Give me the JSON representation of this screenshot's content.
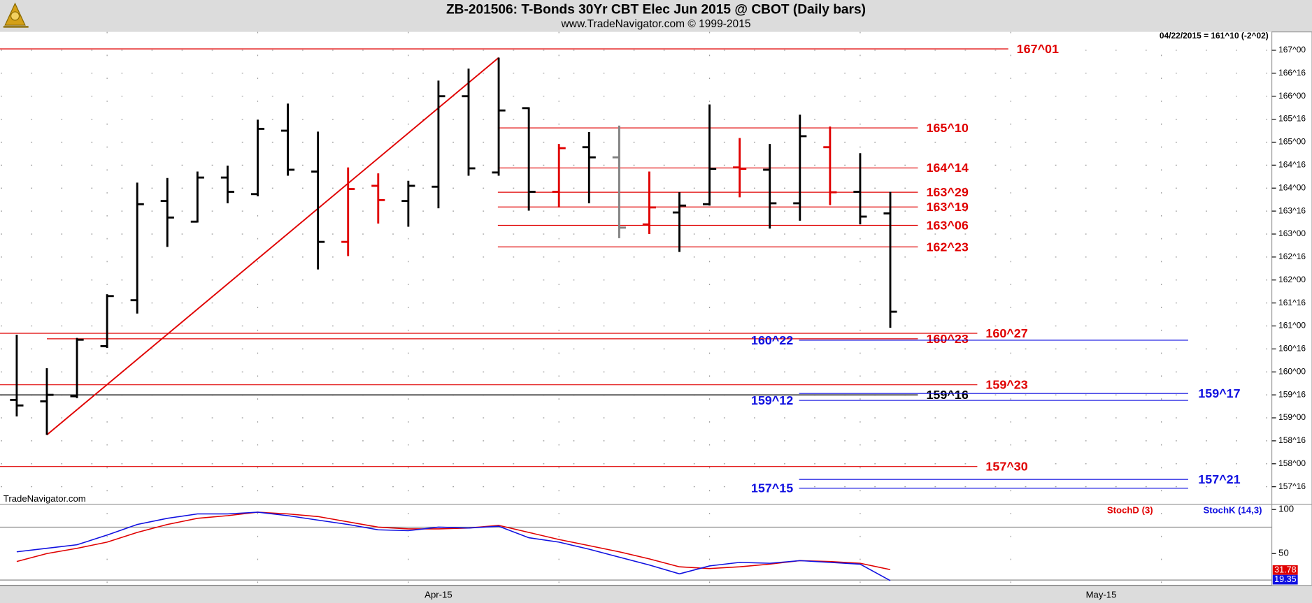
{
  "chart_data": [
    {
      "type": "ohlc",
      "title": "ZB-201506:  T-Bonds 30Yr CBT Elec Jun 2015 @ CBOT  (Daily bars)",
      "subtitle": "www.TradeNavigator.com © 1999-2015",
      "price_note": "04/22/2015 = 161^10 (-2^02)",
      "watermark": "TradeNavigator.com",
      "categories": [
        null,
        null,
        null,
        null,
        null,
        null,
        null,
        null,
        null,
        null,
        null,
        null,
        null,
        null,
        "Apr-15",
        null,
        null,
        null,
        null,
        null,
        null,
        null,
        null,
        null,
        null,
        null,
        null,
        null,
        null,
        null,
        null,
        null,
        null,
        null,
        null,
        null,
        "May-15",
        null,
        null,
        null,
        null,
        null
      ],
      "open": [
        159.39,
        159.36,
        159.47,
        160.56,
        161.56,
        163.72,
        163.27,
        164.23,
        163.87,
        165.25,
        164.36,
        162.83,
        164.05,
        163.72,
        164.03,
        166.0,
        164.34,
        165.74,
        163.92,
        164.89,
        164.67,
        163.21,
        163.47,
        163.65,
        164.45,
        164.4,
        163.67,
        164.89,
        163.92,
        163.45,
        null,
        null,
        null,
        null,
        null,
        null,
        null,
        null,
        null,
        null,
        null,
        null
      ],
      "high": [
        160.81,
        160.08,
        160.74,
        161.69,
        164.12,
        164.22,
        164.36,
        164.49,
        165.49,
        165.84,
        165.23,
        164.45,
        164.32,
        164.16,
        166.34,
        166.6,
        166.84,
        165.76,
        164.96,
        165.22,
        165.36,
        164.36,
        163.91,
        165.82,
        165.09,
        164.96,
        165.6,
        165.34,
        164.76,
        163.92,
        null,
        null,
        null,
        null,
        null,
        null,
        null,
        null,
        null,
        null,
        null,
        null
      ],
      "low": [
        159.03,
        158.63,
        159.43,
        160.52,
        161.27,
        162.72,
        163.25,
        163.67,
        163.82,
        164.27,
        162.23,
        162.52,
        163.23,
        163.16,
        163.56,
        164.27,
        164.27,
        163.51,
        163.58,
        163.67,
        162.91,
        163.0,
        162.61,
        163.62,
        163.8,
        163.12,
        163.29,
        163.63,
        163.21,
        160.96,
        null,
        null,
        null,
        null,
        null,
        null,
        null,
        null,
        null,
        null,
        null,
        null
      ],
      "close": [
        159.27,
        159.5,
        160.7,
        161.65,
        163.65,
        163.36,
        164.23,
        163.92,
        165.29,
        164.4,
        162.83,
        163.98,
        163.74,
        164.05,
        166.0,
        164.43,
        165.69,
        163.92,
        164.87,
        164.67,
        163.14,
        163.58,
        163.62,
        164.42,
        164.42,
        163.67,
        165.13,
        163.91,
        163.38,
        161.31,
        null,
        null,
        null,
        null,
        null,
        null,
        null,
        null,
        null,
        null,
        null,
        null
      ],
      "bar_colors": [
        "#000000",
        "#000000",
        "#000000",
        "#000000",
        "#000000",
        "#000000",
        "#000000",
        "#000000",
        "#000000",
        "#000000",
        "#000000",
        "#e00000",
        "#e00000",
        "#000000",
        "#000000",
        "#000000",
        "#000000",
        "#000000",
        "#e00000",
        "#000000",
        "#808080",
        "#e00000",
        "#000000",
        "#000000",
        "#e00000",
        "#000000",
        "#000000",
        "#e00000",
        "#000000",
        "#000000",
        null,
        null,
        null,
        null,
        null,
        null,
        null,
        null,
        null,
        null,
        null,
        null
      ],
      "trendline_color": "#e00000",
      "ylim": [
        157.12,
        167.4
      ],
      "yticks": [
        {
          "value": 157.5,
          "label": "157^16"
        },
        {
          "value": 158,
          "label": "158^00"
        },
        {
          "value": 158.5,
          "label": "158^16"
        },
        {
          "value": 159,
          "label": "159^00"
        },
        {
          "value": 159.5,
          "label": "159^16"
        },
        {
          "value": 160,
          "label": "160^00"
        },
        {
          "value": 160.5,
          "label": "160^16"
        },
        {
          "value": 161,
          "label": "161^00"
        },
        {
          "value": 161.5,
          "label": "161^16"
        },
        {
          "value": 162,
          "label": "162^00"
        },
        {
          "value": 162.5,
          "label": "162^16"
        },
        {
          "value": 163,
          "label": "163^00"
        },
        {
          "value": 163.5,
          "label": "163^16"
        },
        {
          "value": 164,
          "label": "164^00"
        },
        {
          "value": 164.5,
          "label": "164^16"
        },
        {
          "value": 165,
          "label": "165^00"
        },
        {
          "value": 165.5,
          "label": "165^16"
        },
        {
          "value": 166,
          "label": "166^00"
        },
        {
          "value": 166.5,
          "label": "166^16"
        },
        {
          "value": 167,
          "label": "167^00"
        }
      ],
      "grid": true,
      "levels": [
        {
          "value": 167.03,
          "label": "167^01",
          "color": "#e00000"
        },
        {
          "value": 165.31,
          "label": "165^10",
          "color": "#e00000"
        },
        {
          "value": 164.44,
          "label": "164^14",
          "color": "#e00000"
        },
        {
          "value": 163.91,
          "label": "163^29",
          "color": "#e00000"
        },
        {
          "value": 163.59,
          "label": "163^19",
          "color": "#e00000"
        },
        {
          "value": 163.19,
          "label": "163^06",
          "color": "#e00000"
        },
        {
          "value": 162.72,
          "label": "162^23",
          "color": "#e00000"
        },
        {
          "value": 160.84,
          "label": "160^27",
          "color": "#e00000"
        },
        {
          "value": 160.72,
          "label": "160^23",
          "color": "#e00000"
        },
        {
          "value": 160.69,
          "label": "160^22",
          "color": "#1010e0"
        },
        {
          "value": 159.72,
          "label": "159^23",
          "color": "#e00000"
        },
        {
          "value": 159.5,
          "label": "159^16",
          "color": "#000000"
        },
        {
          "value": 159.53,
          "label": "159^17",
          "color": "#1010e0"
        },
        {
          "value": 159.38,
          "label": "159^12",
          "color": "#1010e0"
        },
        {
          "value": 157.94,
          "label": "157^30",
          "color": "#e00000"
        },
        {
          "value": 157.66,
          "label": "157^21",
          "color": "#1010e0"
        },
        {
          "value": 157.47,
          "label": "157^15",
          "color": "#1010e0"
        }
      ]
    },
    {
      "type": "line",
      "series": [
        {
          "name": "StochD (3)",
          "color": "#e00000",
          "values": [
            41,
            50,
            56,
            63,
            74,
            83,
            90,
            93,
            97,
            95,
            92,
            86,
            80,
            78,
            78,
            79,
            82,
            74,
            66,
            59,
            52,
            44,
            35,
            33,
            35,
            38,
            42,
            41,
            39,
            31.78,
            null,
            null,
            null,
            null,
            null,
            null,
            null,
            null,
            null,
            null,
            null,
            null
          ]
        },
        {
          "name": "StochK (14,3)",
          "color": "#1010e0",
          "values": [
            52,
            56,
            60,
            71,
            83,
            90,
            95,
            95,
            97,
            93,
            88,
            83,
            77,
            76,
            80,
            79,
            81,
            68,
            63,
            55,
            46,
            37,
            27,
            36,
            40,
            39,
            42,
            40,
            38,
            19.35,
            null,
            null,
            null,
            null,
            null,
            null,
            null,
            null,
            null,
            null,
            null,
            null
          ]
        }
      ],
      "ylim": [
        14,
        106
      ],
      "yticks": [
        100,
        50
      ],
      "reference_lines": [
        80,
        20
      ]
    }
  ]
}
